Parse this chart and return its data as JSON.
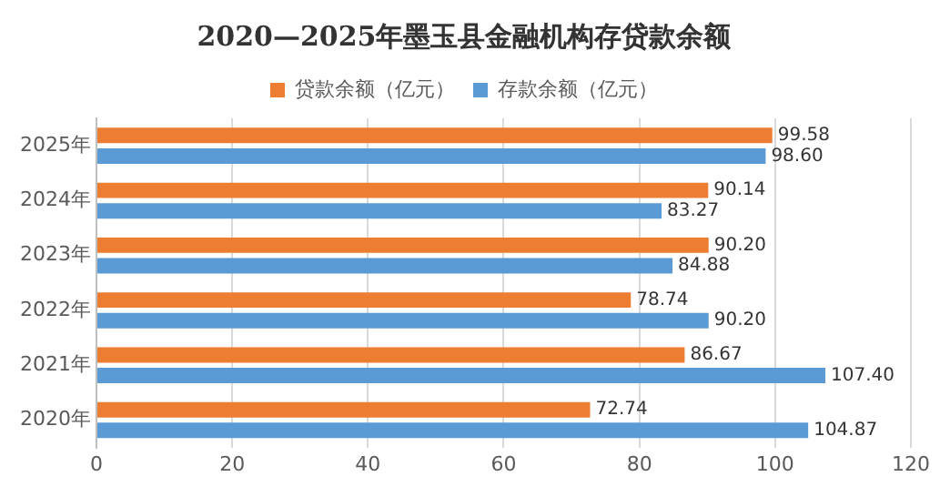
{
  "chart_data": {
    "type": "bar",
    "orientation": "horizontal",
    "title": "2020—2025年墨玉县金融机构存贷款余额",
    "categories": [
      "2025年",
      "2024年",
      "2023年",
      "2022年",
      "2021年",
      "2020年"
    ],
    "series": [
      {
        "name": "贷款余额（亿元）",
        "color": "#ed7d31",
        "values": [
          99.58,
          90.14,
          90.2,
          78.74,
          86.67,
          72.74
        ],
        "value_labels": [
          "99.58",
          "90.14",
          "90.20",
          "78.74",
          "86.67",
          "72.74"
        ]
      },
      {
        "name": "存款余额（亿元）",
        "color": "#5b9bd5",
        "values": [
          98.6,
          83.27,
          84.88,
          90.2,
          107.4,
          104.87
        ],
        "value_labels": [
          "98.60",
          "83.27",
          "84.88",
          "90.20",
          "107.40",
          "104.87"
        ]
      }
    ],
    "xlim": [
      0,
      120
    ],
    "xticks": [
      0,
      20,
      40,
      60,
      80,
      100,
      120
    ],
    "grid": "x",
    "legend": "top"
  }
}
